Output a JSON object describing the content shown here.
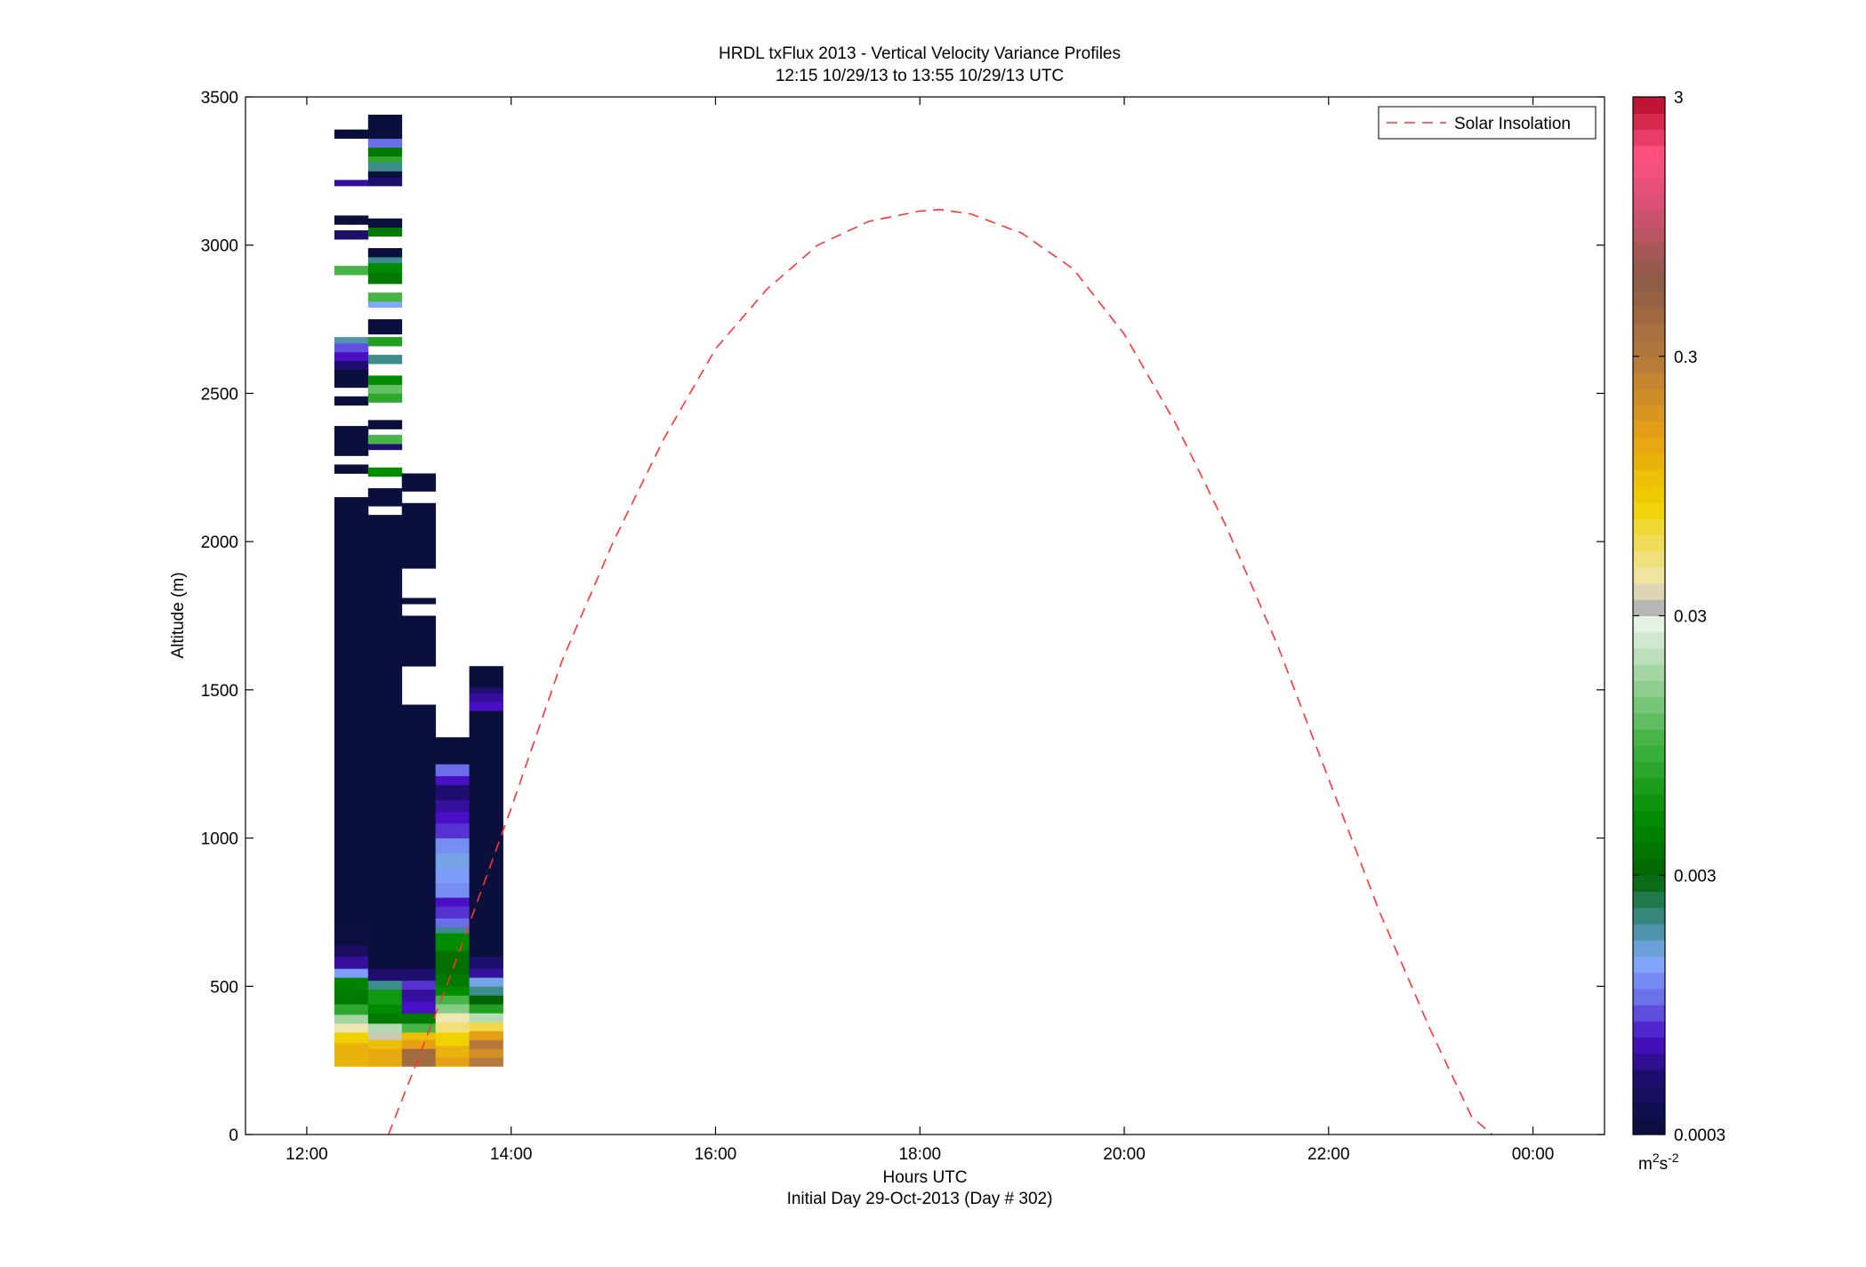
{
  "chart_data": {
    "type": "heatmap",
    "title": "HRDL txFlux 2013 - Vertical Velocity Variance Profiles",
    "subtitle": "12:15 10/29/13 to 13:55 10/29/13  UTC",
    "xlabel": "Hours UTC",
    "xlabel2": "Initial Day 29-Oct-2013 (Day # 302)",
    "ylabel": "Altitude (m)",
    "xlim": [
      11.4,
      24.7
    ],
    "ylim": [
      0,
      3500
    ],
    "x_ticks": [
      12,
      14,
      16,
      18,
      20,
      22,
      24
    ],
    "x_tick_labels": [
      "12:00",
      "14:00",
      "16:00",
      "18:00",
      "20:00",
      "22:00",
      "00:00"
    ],
    "y_ticks": [
      0,
      500,
      1000,
      1500,
      2000,
      2500,
      3000,
      3500
    ],
    "y_tick_labels": [
      "0",
      "500",
      "1000",
      "1500",
      "2000",
      "2500",
      "3000",
      "3500"
    ],
    "grid": false,
    "legend": {
      "position": "top-right",
      "entries": [
        {
          "label": "Solar Insolation",
          "color": "#ff3333",
          "style": "dashed"
        }
      ]
    },
    "colorbar": {
      "scale": "log",
      "range": [
        0.0003,
        3
      ],
      "ticks": [
        0.0003,
        0.003,
        0.03,
        0.3,
        3
      ],
      "tick_labels": [
        "0.0003",
        "0.003",
        "0.03",
        "0.3",
        "3"
      ],
      "unit_base": "m",
      "unit_exp1": "2",
      "unit_mid": "s",
      "unit_exp2": "-2",
      "stops": [
        {
          "v": 0.0003,
          "color": "#0a0f3c"
        },
        {
          "v": 0.0005,
          "color": "#1e0f6e"
        },
        {
          "v": 0.0007,
          "color": "#4a0fc4"
        },
        {
          "v": 0.001,
          "color": "#6a6ee8"
        },
        {
          "v": 0.0014,
          "color": "#82aafc"
        },
        {
          "v": 0.002,
          "color": "#3c8c8c"
        },
        {
          "v": 0.003,
          "color": "#006400"
        },
        {
          "v": 0.005,
          "color": "#008c00"
        },
        {
          "v": 0.01,
          "color": "#46b446"
        },
        {
          "v": 0.02,
          "color": "#b4dcb4"
        },
        {
          "v": 0.03,
          "color": "#f0f5f0"
        },
        {
          "v": 0.032,
          "color": "#b4b4b4"
        },
        {
          "v": 0.04,
          "color": "#f0e6b4"
        },
        {
          "v": 0.08,
          "color": "#f0d200"
        },
        {
          "v": 0.15,
          "color": "#e6a014"
        },
        {
          "v": 0.3,
          "color": "#b4783c"
        },
        {
          "v": 0.6,
          "color": "#8c5a46"
        },
        {
          "v": 1.2,
          "color": "#dc5078"
        },
        {
          "v": 1.8,
          "color": "#ff507f"
        },
        {
          "v": 3,
          "color": "#b40a28"
        }
      ]
    },
    "series": [
      {
        "name": "Solar Insolation",
        "type": "line",
        "style": "dashed",
        "color": "#ff3333",
        "x": [
          12.8,
          13.4,
          14.0,
          14.5,
          15.0,
          15.5,
          16.0,
          16.5,
          17.0,
          17.5,
          18.0,
          18.2,
          18.5,
          19.0,
          19.5,
          20.0,
          20.5,
          21.0,
          21.5,
          22.0,
          22.5,
          23.0,
          23.4,
          23.6
        ],
        "y": [
          0,
          530,
          1100,
          1600,
          2000,
          2350,
          2650,
          2850,
          3000,
          3080,
          3115,
          3120,
          3105,
          3040,
          2920,
          2700,
          2400,
          2050,
          1650,
          1200,
          750,
          350,
          60,
          0
        ]
      }
    ],
    "columns": [
      {
        "x0": 12.27,
        "x1": 12.6,
        "cells": [
          [
            230,
            310,
            0.12
          ],
          [
            310,
            345,
            0.08
          ],
          [
            345,
            375,
            0.04
          ],
          [
            375,
            405,
            0.018
          ],
          [
            405,
            440,
            0.008
          ],
          [
            440,
            490,
            0.004
          ],
          [
            490,
            530,
            0.0045
          ],
          [
            530,
            560,
            0.0013
          ],
          [
            560,
            600,
            0.0006
          ],
          [
            600,
            640,
            0.00045
          ],
          [
            640,
            700,
            0.00032
          ],
          [
            700,
            2150,
            0.0003
          ],
          [
            2230,
            2260,
            0.0003
          ],
          [
            2290,
            2390,
            0.0003
          ],
          [
            2460,
            2490,
            0.0003
          ],
          [
            2520,
            2580,
            0.0003
          ],
          [
            2580,
            2610,
            0.0005
          ],
          [
            2610,
            2640,
            0.0007
          ],
          [
            2640,
            2670,
            0.0009
          ],
          [
            2670,
            2690,
            0.0018
          ],
          [
            2900,
            2930,
            0.01
          ],
          [
            3020,
            3050,
            0.0005
          ],
          [
            3070,
            3100,
            0.0003
          ],
          [
            3200,
            3220,
            0.0006
          ],
          [
            3360,
            3390,
            0.0003
          ]
        ]
      },
      {
        "x0": 12.6,
        "x1": 12.93,
        "cells": [
          [
            230,
            290,
            0.13
          ],
          [
            290,
            320,
            0.1
          ],
          [
            320,
            345,
            0.035
          ],
          [
            345,
            375,
            0.02
          ],
          [
            375,
            410,
            0.004
          ],
          [
            410,
            440,
            0.005
          ],
          [
            440,
            490,
            0.006
          ],
          [
            490,
            520,
            0.002
          ],
          [
            520,
            560,
            0.0005
          ],
          [
            560,
            2090,
            0.0003
          ],
          [
            2120,
            2180,
            0.0003
          ],
          [
            2220,
            2250,
            0.005
          ],
          [
            2310,
            2330,
            0.0005
          ],
          [
            2330,
            2360,
            0.01
          ],
          [
            2380,
            2410,
            0.0003
          ],
          [
            2470,
            2500,
            0.008
          ],
          [
            2500,
            2530,
            0.012
          ],
          [
            2530,
            2560,
            0.005
          ],
          [
            2600,
            2630,
            0.002
          ],
          [
            2660,
            2690,
            0.007
          ],
          [
            2700,
            2750,
            0.0003
          ],
          [
            2790,
            2810,
            0.0014
          ],
          [
            2810,
            2840,
            0.01
          ],
          [
            2870,
            2910,
            0.004
          ],
          [
            2910,
            2940,
            0.005
          ],
          [
            2940,
            2960,
            0.002
          ],
          [
            2960,
            2990,
            0.0003
          ],
          [
            3030,
            3060,
            0.004
          ],
          [
            3060,
            3090,
            0.0003
          ],
          [
            3200,
            3230,
            0.0005
          ],
          [
            3230,
            3250,
            0.0003
          ],
          [
            3250,
            3280,
            0.002
          ],
          [
            3280,
            3300,
            0.008
          ],
          [
            3300,
            3330,
            0.004
          ],
          [
            3330,
            3360,
            0.001
          ],
          [
            3360,
            3440,
            0.0003
          ]
        ]
      },
      {
        "x0": 12.93,
        "x1": 13.26,
        "cells": [
          [
            230,
            290,
            0.4
          ],
          [
            290,
            320,
            0.15
          ],
          [
            320,
            345,
            0.1
          ],
          [
            345,
            375,
            0.01
          ],
          [
            375,
            410,
            0.004
          ],
          [
            410,
            450,
            0.0007
          ],
          [
            450,
            490,
            0.0006
          ],
          [
            490,
            520,
            0.0008
          ],
          [
            520,
            560,
            0.0005
          ],
          [
            560,
            1450,
            0.0003
          ],
          [
            1580,
            1750,
            0.0003
          ],
          [
            1790,
            1810,
            0.0003
          ],
          [
            1910,
            2130,
            0.0003
          ],
          [
            2170,
            2230,
            0.0003
          ]
        ]
      },
      {
        "x0": 13.26,
        "x1": 13.59,
        "cells": [
          [
            230,
            260,
            0.15
          ],
          [
            260,
            300,
            0.12
          ],
          [
            300,
            345,
            0.08
          ],
          [
            345,
            380,
            0.05
          ],
          [
            380,
            410,
            0.04
          ],
          [
            410,
            440,
            0.015
          ],
          [
            440,
            470,
            0.01
          ],
          [
            470,
            500,
            0.005
          ],
          [
            500,
            540,
            0.004
          ],
          [
            540,
            620,
            0.0035
          ],
          [
            620,
            680,
            0.005
          ],
          [
            680,
            700,
            0.002
          ],
          [
            700,
            730,
            0.001
          ],
          [
            730,
            770,
            0.0008
          ],
          [
            770,
            800,
            0.0007
          ],
          [
            800,
            850,
            0.0012
          ],
          [
            850,
            900,
            0.0013
          ],
          [
            900,
            950,
            0.0015
          ],
          [
            950,
            1000,
            0.0012
          ],
          [
            1000,
            1050,
            0.0008
          ],
          [
            1050,
            1090,
            0.0007
          ],
          [
            1090,
            1130,
            0.0006
          ],
          [
            1130,
            1180,
            0.0005
          ],
          [
            1180,
            1210,
            0.0007
          ],
          [
            1210,
            1250,
            0.001
          ],
          [
            1250,
            1340,
            0.0003
          ]
        ]
      },
      {
        "x0": 13.59,
        "x1": 13.92,
        "cells": [
          [
            230,
            260,
            0.3
          ],
          [
            260,
            290,
            0.2
          ],
          [
            290,
            320,
            0.3
          ],
          [
            320,
            350,
            0.15
          ],
          [
            350,
            380,
            0.06
          ],
          [
            380,
            410,
            0.02
          ],
          [
            410,
            440,
            0.007
          ],
          [
            440,
            470,
            0.003
          ],
          [
            470,
            500,
            0.002
          ],
          [
            500,
            530,
            0.0015
          ],
          [
            530,
            560,
            0.0006
          ],
          [
            560,
            600,
            0.0005
          ],
          [
            600,
            1430,
            0.0003
          ],
          [
            1430,
            1460,
            0.0007
          ],
          [
            1460,
            1490,
            0.0006
          ],
          [
            1490,
            1510,
            0.0005
          ],
          [
            1510,
            1580,
            0.0003
          ]
        ]
      }
    ]
  }
}
